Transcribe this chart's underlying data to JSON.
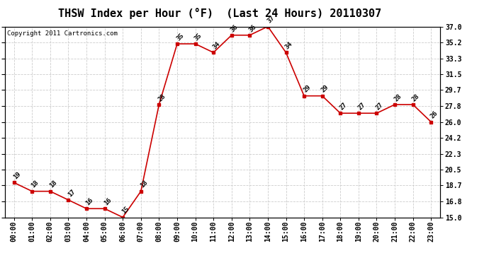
{
  "title": "THSW Index per Hour (°F)  (Last 24 Hours) 20110307",
  "copyright": "Copyright 2011 Cartronics.com",
  "hours": [
    "00:00",
    "01:00",
    "02:00",
    "03:00",
    "04:00",
    "05:00",
    "06:00",
    "07:00",
    "08:00",
    "09:00",
    "10:00",
    "11:00",
    "12:00",
    "13:00",
    "14:00",
    "15:00",
    "16:00",
    "17:00",
    "18:00",
    "19:00",
    "20:00",
    "21:00",
    "22:00",
    "23:00"
  ],
  "values": [
    19,
    18,
    18,
    17,
    16,
    16,
    15,
    18,
    28,
    35,
    35,
    34,
    36,
    36,
    37,
    34,
    29,
    29,
    27,
    27,
    27,
    28,
    28,
    26
  ],
  "line_color": "#cc0000",
  "marker_color": "#cc0000",
  "background_color": "#ffffff",
  "grid_color": "#cccccc",
  "ylim_min": 15.0,
  "ylim_max": 37.0,
  "yticks": [
    15.0,
    16.8,
    18.7,
    20.5,
    22.3,
    24.2,
    26.0,
    27.8,
    29.7,
    31.5,
    33.3,
    35.2,
    37.0
  ],
  "title_fontsize": 11,
  "copyright_fontsize": 6.5,
  "label_fontsize": 6.5,
  "tick_fontsize": 7
}
